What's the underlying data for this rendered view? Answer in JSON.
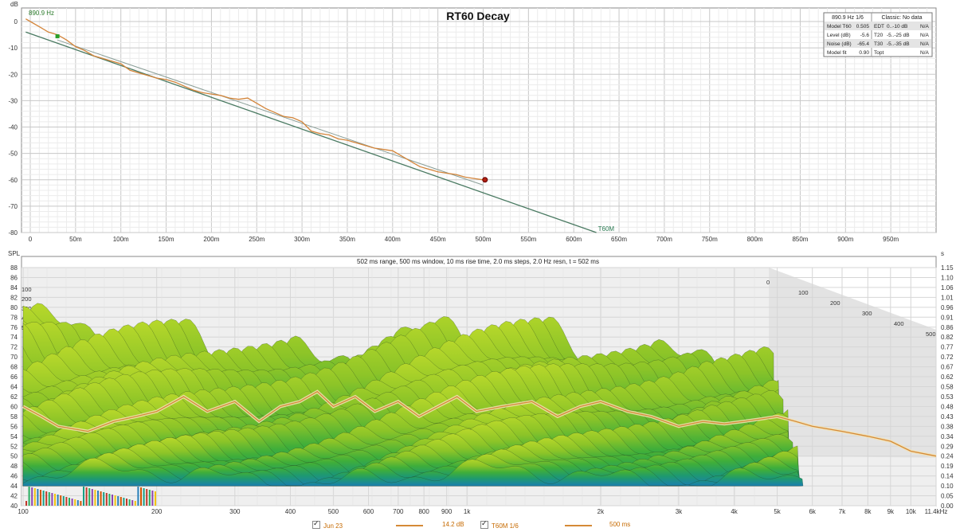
{
  "chart_data": [
    {
      "type": "line",
      "title": "RT60 Decay",
      "ylabel": "dB",
      "xlim": [
        0,
        1000
      ],
      "ylim": [
        -80,
        5
      ],
      "yticks": [
        0,
        -10,
        -20,
        -30,
        -40,
        -50,
        -60,
        -70,
        -80
      ],
      "xticks": [
        0,
        50,
        100,
        150,
        200,
        250,
        300,
        350,
        400,
        450,
        500,
        550,
        600,
        650,
        700,
        750,
        800,
        850,
        900,
        950
      ],
      "xtick_labels": [
        "0",
        "50m",
        "100m",
        "150m",
        "200m",
        "250m",
        "300m",
        "350m",
        "400m",
        "450m",
        "500m",
        "550m",
        "600m",
        "650m",
        "700m",
        "750m",
        "800m",
        "850m",
        "900m",
        "950m"
      ],
      "ytick_labels": [
        "0",
        "-10",
        "-20",
        "-30",
        "-40",
        "-50",
        "-60",
        "-70",
        "-80"
      ],
      "freq_label": "890.9 Hz",
      "series": [
        {
          "color": "#d4853a",
          "x": [
            -5,
            0,
            10,
            20,
            30,
            40,
            50,
            60,
            70,
            80,
            90,
            100,
            110,
            120,
            130,
            140,
            150,
            160,
            170,
            180,
            190,
            200,
            210,
            220,
            230,
            240,
            250,
            260,
            270,
            280,
            290,
            300,
            310,
            320,
            330,
            340,
            350,
            360,
            370,
            380,
            390,
            400,
            410,
            420,
            430,
            440,
            450,
            460,
            470,
            480,
            490,
            500,
            502
          ],
          "y": [
            1,
            0,
            -2,
            -4,
            -5,
            -7,
            -9.5,
            -11,
            -13,
            -14,
            -15,
            -16,
            -18.5,
            -19.5,
            -20.5,
            -21.5,
            -22,
            -23,
            -24.5,
            -26,
            -27,
            -27.5,
            -28,
            -29,
            -29.5,
            -29,
            -31,
            -33,
            -34.5,
            -36,
            -36.5,
            -38,
            -41.5,
            -42.5,
            -43,
            -44.5,
            -45,
            -46,
            -47,
            -48,
            -48.5,
            -49,
            -51,
            -53,
            -55,
            -56,
            -57,
            -57.5,
            -58,
            -59,
            -59.5,
            -60,
            -60
          ]
        },
        {
          "name": "T60M",
          "color": "#4a7a62",
          "x": [
            -5,
            625
          ],
          "y": [
            -4,
            -80
          ]
        },
        {
          "color": "#8a9e97",
          "x": [
            30,
            500
          ],
          "y": [
            -7,
            -62
          ]
        }
      ],
      "markers": [
        {
          "x": 30,
          "y": -5.6,
          "color": "#2aa02a"
        },
        {
          "x": 502,
          "y": -60,
          "color": "#b02010"
        }
      ],
      "table": {
        "header_left": "890.9 Hz 1/6",
        "header_right": "Classic: No data",
        "rows": [
          [
            "Model T60",
            "0.505",
            "EDT",
            "0..-10 dB",
            "N/A"
          ],
          [
            "Level (dB)",
            "-5.6",
            "T20",
            "-5..-25 dB",
            "N/A"
          ],
          [
            "Noise (dB)",
            "-65.4",
            "T30",
            "-5..-35 dB",
            "N/A"
          ],
          [
            "Model fit",
            "0.90",
            "Topt",
            "",
            "N/A"
          ]
        ]
      }
    },
    {
      "type": "area",
      "subtitle": "502 ms range, 500 ms window, 10 ms rise time, 2.0 ms steps,  2.0 Hz resn, t = 502 ms",
      "ylabel": "SPL",
      "ylabel_right": "s",
      "xscale": "log",
      "xlim": [
        100,
        11400
      ],
      "ylim": [
        40,
        88
      ],
      "yticks": [
        40,
        42,
        44,
        46,
        48,
        50,
        52,
        54,
        56,
        58,
        60,
        62,
        64,
        66,
        68,
        70,
        72,
        74,
        76,
        78,
        80,
        82,
        84,
        86,
        88
      ],
      "ytick_labels": [
        "40",
        "42",
        "44",
        "46",
        "48",
        "50",
        "52",
        "54",
        "56",
        "58",
        "60",
        "62",
        "64",
        "66",
        "68",
        "70",
        "72",
        "74",
        "76",
        "78",
        "80",
        "82",
        "84",
        "86",
        "88"
      ],
      "yticks_right": [
        "0.00",
        "0.05",
        "0.10",
        "0.14",
        "0.19",
        "0.24",
        "0.29",
        "0.34",
        "0.38",
        "0.43",
        "0.48",
        "0.53",
        "0.58",
        "0.62",
        "0.67",
        "0.72",
        "0.77",
        "0.82",
        "0.86",
        "0.91",
        "0.96",
        "1.01",
        "1.06",
        "1.10",
        "1.15"
      ],
      "xticks": [
        100,
        200,
        300,
        400,
        500,
        600,
        700,
        800,
        900,
        1000,
        2000,
        3000,
        4000,
        5000,
        6000,
        7000,
        8000,
        9000,
        10000,
        11400
      ],
      "xtick_labels": [
        "100",
        "200",
        "300",
        "400",
        "500",
        "600",
        "700",
        "800",
        "900",
        "1k",
        "2k",
        "3k",
        "4k",
        "5k",
        "6k",
        "7k",
        "8k",
        "9k",
        "10k",
        "11.4kHz"
      ],
      "depth_labels_left": [
        "100",
        "200",
        "300",
        "400",
        "500"
      ],
      "depth_labels_right": [
        "0",
        "100",
        "200",
        "300",
        "400",
        "500"
      ],
      "series": [
        {
          "name": "500 ms",
          "color": "#d58a37",
          "x": [
            100,
            110,
            120,
            140,
            160,
            180,
            200,
            230,
            260,
            300,
            340,
            380,
            420,
            460,
            500,
            560,
            620,
            700,
            780,
            860,
            950,
            1050,
            1200,
            1400,
            1600,
            1800,
            2000,
            2300,
            2600,
            3000,
            3400,
            3800,
            4200,
            4600,
            5000,
            5500,
            6000,
            7000,
            8000,
            9000,
            10000,
            11400
          ],
          "y": [
            60,
            58,
            56,
            55,
            57,
            58,
            59,
            62,
            59,
            61,
            57,
            60,
            61,
            63,
            60,
            62,
            59,
            61,
            58,
            60,
            62,
            59,
            60,
            61,
            58,
            60,
            61,
            59,
            58,
            56,
            57,
            56.5,
            57,
            57.5,
            58,
            57,
            56,
            55,
            54,
            53,
            51,
            50
          ]
        }
      ]
    }
  ],
  "legend": [
    {
      "label": "Jun 23",
      "value": "14.2 dB"
    },
    {
      "label": "T60M 1/6",
      "value": "500 ms"
    }
  ]
}
